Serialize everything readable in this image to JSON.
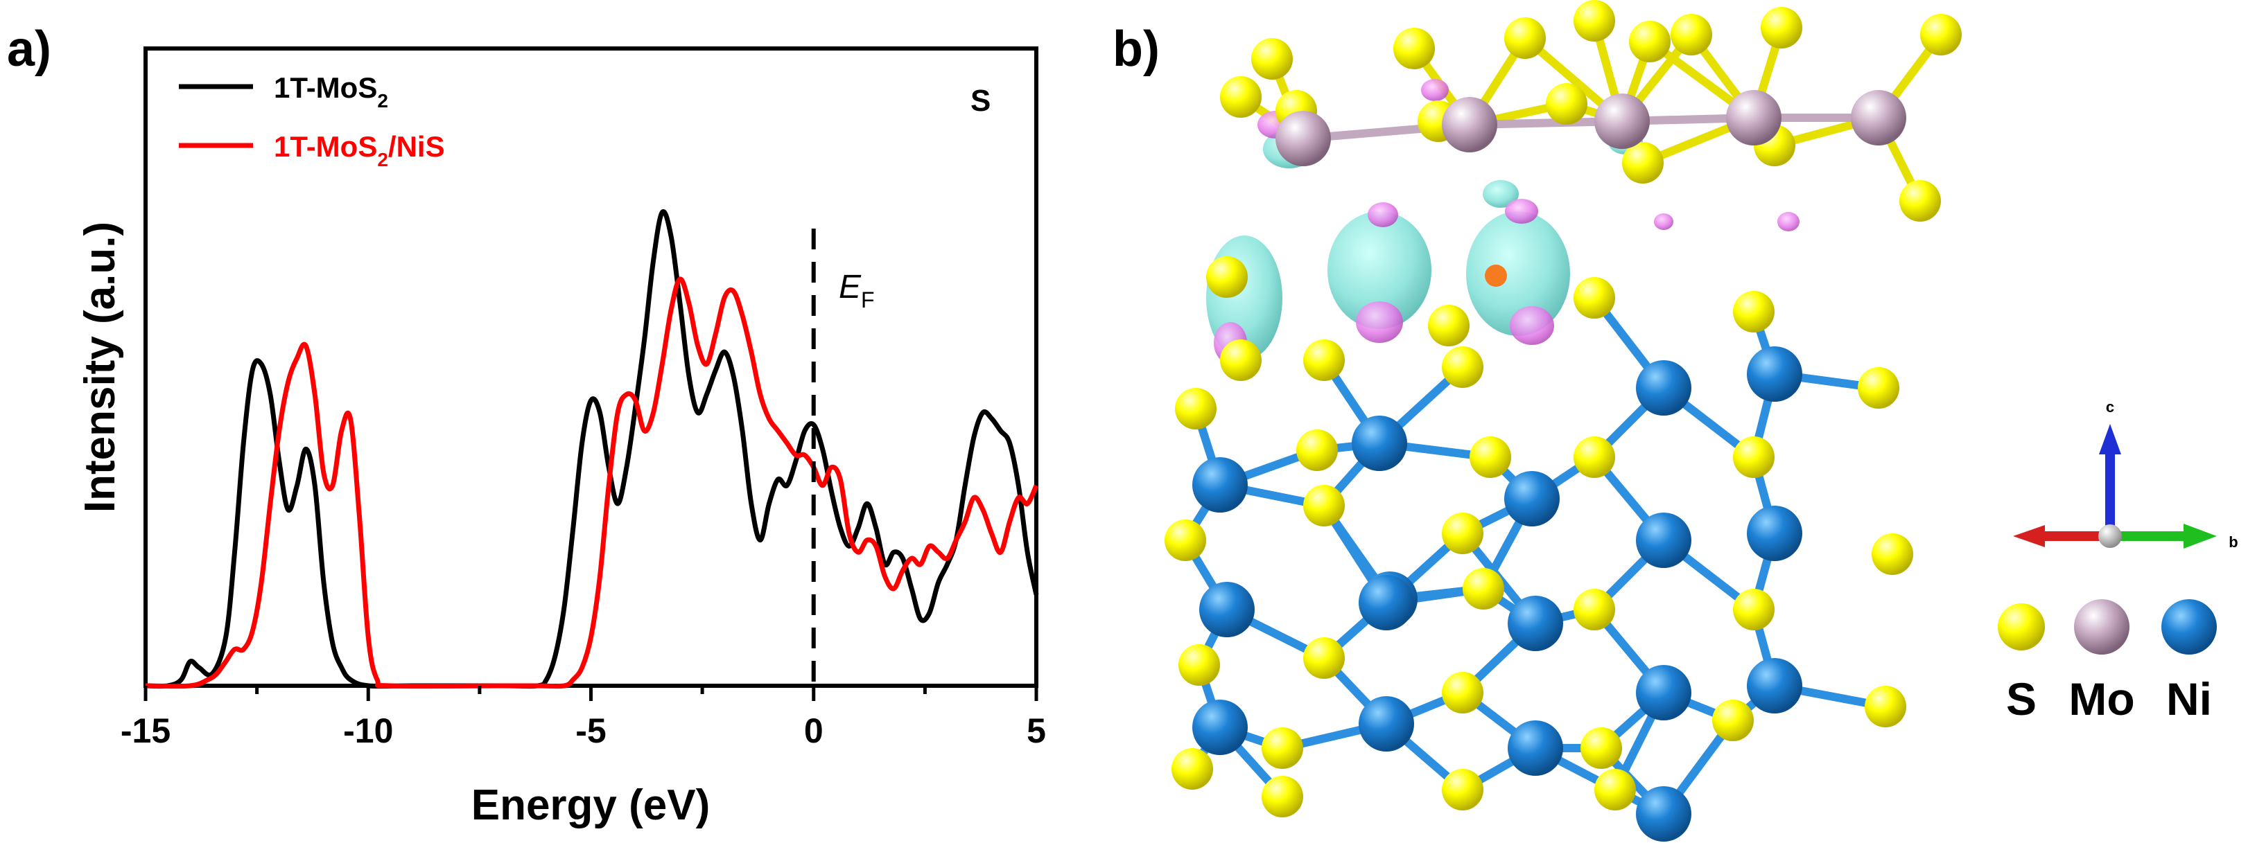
{
  "panels": {
    "a_label": "a)",
    "b_label": "b)"
  },
  "chart_data": {
    "type": "line",
    "xlabel": "Energy (eV)",
    "ylabel": "Intensity (a.u.)",
    "xlim": [
      -15,
      5
    ],
    "ylim": [
      0,
      1.05
    ],
    "xticks": [
      "-15",
      "-10",
      "-5",
      "0",
      "5"
    ],
    "yticks": [],
    "grid": false,
    "legend_position": "top-left",
    "annotation": "S",
    "fermi_label": {
      "main": "E",
      "sub": "F"
    },
    "fermi_x": 0,
    "series": [
      {
        "name": "1T-MoS2",
        "name_main": "1T-MoS",
        "name_sub": "2",
        "name_tail": "",
        "color": "#000000",
        "points": [
          [
            -15,
            0.0
          ],
          [
            -14.5,
            0.0
          ],
          [
            -14.2,
            0.01
          ],
          [
            -14.0,
            0.04
          ],
          [
            -13.8,
            0.03
          ],
          [
            -13.5,
            0.02
          ],
          [
            -13.2,
            0.08
          ],
          [
            -13.0,
            0.22
          ],
          [
            -12.8,
            0.4
          ],
          [
            -12.6,
            0.52
          ],
          [
            -12.4,
            0.53
          ],
          [
            -12.2,
            0.48
          ],
          [
            -12.0,
            0.37
          ],
          [
            -11.8,
            0.29
          ],
          [
            -11.6,
            0.33
          ],
          [
            -11.4,
            0.39
          ],
          [
            -11.2,
            0.33
          ],
          [
            -11.0,
            0.17
          ],
          [
            -10.8,
            0.07
          ],
          [
            -10.6,
            0.03
          ],
          [
            -10.4,
            0.01
          ],
          [
            -10.0,
            0.0
          ],
          [
            -9.0,
            0.0
          ],
          [
            -7.0,
            0.0
          ],
          [
            -6.2,
            0.0
          ],
          [
            -6.0,
            0.01
          ],
          [
            -5.8,
            0.05
          ],
          [
            -5.6,
            0.13
          ],
          [
            -5.4,
            0.26
          ],
          [
            -5.2,
            0.4
          ],
          [
            -5.0,
            0.47
          ],
          [
            -4.8,
            0.45
          ],
          [
            -4.6,
            0.36
          ],
          [
            -4.4,
            0.3
          ],
          [
            -4.2,
            0.36
          ],
          [
            -4.0,
            0.46
          ],
          [
            -3.8,
            0.57
          ],
          [
            -3.6,
            0.7
          ],
          [
            -3.4,
            0.78
          ],
          [
            -3.2,
            0.74
          ],
          [
            -3.0,
            0.63
          ],
          [
            -2.8,
            0.51
          ],
          [
            -2.6,
            0.45
          ],
          [
            -2.4,
            0.48
          ],
          [
            -2.2,
            0.52
          ],
          [
            -2.0,
            0.55
          ],
          [
            -1.8,
            0.51
          ],
          [
            -1.6,
            0.42
          ],
          [
            -1.4,
            0.3
          ],
          [
            -1.2,
            0.24
          ],
          [
            -1.0,
            0.3
          ],
          [
            -0.8,
            0.34
          ],
          [
            -0.6,
            0.33
          ],
          [
            -0.4,
            0.37
          ],
          [
            -0.2,
            0.42
          ],
          [
            0.0,
            0.43
          ],
          [
            0.2,
            0.39
          ],
          [
            0.4,
            0.32
          ],
          [
            0.6,
            0.26
          ],
          [
            0.8,
            0.23
          ],
          [
            1.0,
            0.26
          ],
          [
            1.2,
            0.3
          ],
          [
            1.4,
            0.26
          ],
          [
            1.6,
            0.2
          ],
          [
            1.8,
            0.22
          ],
          [
            2.0,
            0.21
          ],
          [
            2.2,
            0.16
          ],
          [
            2.4,
            0.11
          ],
          [
            2.6,
            0.12
          ],
          [
            2.8,
            0.17
          ],
          [
            3.0,
            0.2
          ],
          [
            3.2,
            0.24
          ],
          [
            3.4,
            0.33
          ],
          [
            3.6,
            0.41
          ],
          [
            3.8,
            0.45
          ],
          [
            4.0,
            0.44
          ],
          [
            4.2,
            0.42
          ],
          [
            4.4,
            0.4
          ],
          [
            4.6,
            0.33
          ],
          [
            4.8,
            0.22
          ],
          [
            5.0,
            0.15
          ]
        ]
      },
      {
        "name": "1T-MoS2/NiS",
        "name_main": "1T-MoS",
        "name_sub": "2",
        "name_tail": "/NiS",
        "color": "#ff0000",
        "points": [
          [
            -15,
            0.0
          ],
          [
            -14.0,
            0.0
          ],
          [
            -13.6,
            0.01
          ],
          [
            -13.4,
            0.02
          ],
          [
            -13.2,
            0.04
          ],
          [
            -13.0,
            0.06
          ],
          [
            -12.8,
            0.06
          ],
          [
            -12.6,
            0.09
          ],
          [
            -12.4,
            0.17
          ],
          [
            -12.2,
            0.3
          ],
          [
            -12.0,
            0.42
          ],
          [
            -11.8,
            0.5
          ],
          [
            -11.6,
            0.54
          ],
          [
            -11.4,
            0.56
          ],
          [
            -11.2,
            0.48
          ],
          [
            -11.0,
            0.35
          ],
          [
            -10.8,
            0.33
          ],
          [
            -10.6,
            0.42
          ],
          [
            -10.4,
            0.44
          ],
          [
            -10.2,
            0.28
          ],
          [
            -10.0,
            0.08
          ],
          [
            -9.8,
            0.01
          ],
          [
            -9.5,
            0.0
          ],
          [
            -7.0,
            0.0
          ],
          [
            -6.2,
            0.0
          ],
          [
            -5.6,
            0.0
          ],
          [
            -5.4,
            0.01
          ],
          [
            -5.2,
            0.03
          ],
          [
            -5.0,
            0.08
          ],
          [
            -4.8,
            0.18
          ],
          [
            -4.6,
            0.33
          ],
          [
            -4.4,
            0.45
          ],
          [
            -4.2,
            0.48
          ],
          [
            -4.0,
            0.47
          ],
          [
            -3.8,
            0.42
          ],
          [
            -3.6,
            0.45
          ],
          [
            -3.4,
            0.53
          ],
          [
            -3.2,
            0.62
          ],
          [
            -3.0,
            0.67
          ],
          [
            -2.8,
            0.63
          ],
          [
            -2.6,
            0.56
          ],
          [
            -2.4,
            0.53
          ],
          [
            -2.2,
            0.58
          ],
          [
            -2.0,
            0.64
          ],
          [
            -1.8,
            0.65
          ],
          [
            -1.6,
            0.61
          ],
          [
            -1.4,
            0.55
          ],
          [
            -1.2,
            0.48
          ],
          [
            -1.0,
            0.44
          ],
          [
            -0.8,
            0.42
          ],
          [
            -0.6,
            0.4
          ],
          [
            -0.4,
            0.38
          ],
          [
            -0.2,
            0.38
          ],
          [
            0.0,
            0.36
          ],
          [
            0.2,
            0.33
          ],
          [
            0.4,
            0.36
          ],
          [
            0.6,
            0.34
          ],
          [
            0.8,
            0.25
          ],
          [
            1.0,
            0.22
          ],
          [
            1.2,
            0.24
          ],
          [
            1.4,
            0.23
          ],
          [
            1.6,
            0.18
          ],
          [
            1.8,
            0.16
          ],
          [
            2.0,
            0.19
          ],
          [
            2.2,
            0.21
          ],
          [
            2.4,
            0.2
          ],
          [
            2.6,
            0.23
          ],
          [
            2.8,
            0.22
          ],
          [
            3.0,
            0.21
          ],
          [
            3.2,
            0.24
          ],
          [
            3.4,
            0.27
          ],
          [
            3.6,
            0.31
          ],
          [
            3.8,
            0.29
          ],
          [
            4.0,
            0.25
          ],
          [
            4.2,
            0.22
          ],
          [
            4.4,
            0.27
          ],
          [
            4.6,
            0.31
          ],
          [
            4.8,
            0.3
          ],
          [
            5.0,
            0.33
          ]
        ]
      }
    ]
  },
  "structure": {
    "axes_labels": {
      "c": "c",
      "b": "b"
    },
    "legend": [
      {
        "label": "S",
        "color": "#ffff00"
      },
      {
        "label": "Mo",
        "color": "#c9a9c4"
      },
      {
        "label": "Ni",
        "color": "#1f82d6"
      }
    ],
    "colors": {
      "s_atom": "#ffff00",
      "mo_atom": "#c9a9c4",
      "ni_atom": "#1f82d6",
      "charge_accumulation": "#7fe0d8",
      "charge_depletion": "#e47ee9",
      "axis_c": "#1f2fd6",
      "axis_b": "#1fbf1f",
      "axis_a": "#d61f1f"
    }
  }
}
